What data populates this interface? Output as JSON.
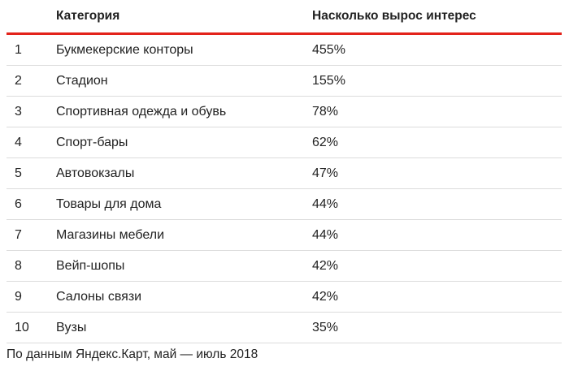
{
  "table": {
    "headers": {
      "num": "",
      "category": "Категория",
      "growth": "Насколько вырос интерес"
    },
    "rows": [
      {
        "num": "1",
        "category": "Букмекерские конторы",
        "growth": "455%"
      },
      {
        "num": "2",
        "category": "Стадион",
        "growth": "155%"
      },
      {
        "num": "3",
        "category": "Спортивная одежда и обувь",
        "growth": "78%"
      },
      {
        "num": "4",
        "category": "Спорт-бары",
        "growth": "62%"
      },
      {
        "num": "5",
        "category": "Автовокзалы",
        "growth": "47%"
      },
      {
        "num": "6",
        "category": "Товары для дома",
        "growth": "44%"
      },
      {
        "num": "7",
        "category": "Магазины мебели",
        "growth": "44%"
      },
      {
        "num": "8",
        "category": "Вейп-шопы",
        "growth": "42%"
      },
      {
        "num": "9",
        "category": "Салоны связи",
        "growth": "42%"
      },
      {
        "num": "10",
        "category": "Вузы",
        "growth": "35%"
      }
    ],
    "accent_color": "#e3231b"
  },
  "footnote": "По данным Яндекс.Карт, май — июль 2018"
}
